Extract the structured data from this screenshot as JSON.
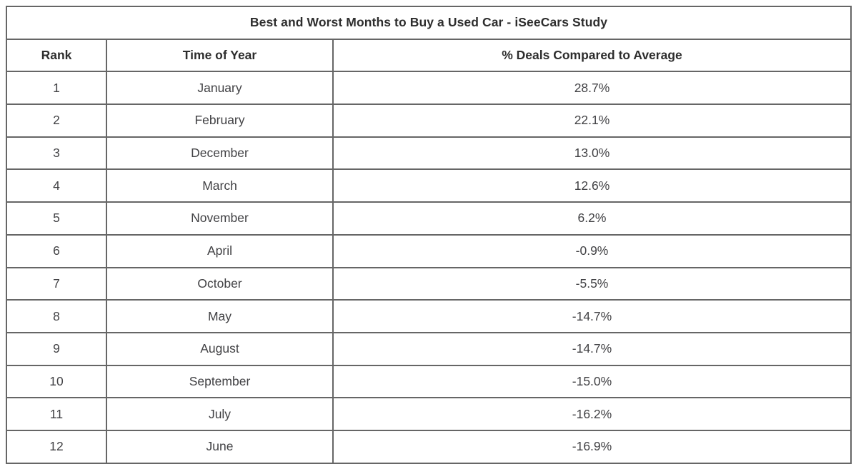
{
  "colors": {
    "border": "#666666",
    "header_text": "#2d2d2d",
    "cell_text": "#414144",
    "background": "#ffffff"
  },
  "table": {
    "title": "Best and Worst Months to Buy a Used Car - iSeeCars Study",
    "columns": [
      "Rank",
      "Time of Year",
      "% Deals Compared to Average"
    ],
    "rows": [
      [
        "1",
        "January",
        "28.7%"
      ],
      [
        "2",
        "February",
        "22.1%"
      ],
      [
        "3",
        "December",
        "13.0%"
      ],
      [
        "4",
        "March",
        "12.6%"
      ],
      [
        "5",
        "November",
        "6.2%"
      ],
      [
        "6",
        "April",
        "-0.9%"
      ],
      [
        "7",
        "October",
        "-5.5%"
      ],
      [
        "8",
        "May",
        "-14.7%"
      ],
      [
        "9",
        "August",
        "-14.7%"
      ],
      [
        "10",
        "September",
        "-15.0%"
      ],
      [
        "11",
        "July",
        "-16.2%"
      ],
      [
        "12",
        "June",
        "-16.9%"
      ]
    ]
  },
  "chart_data": {
    "type": "table",
    "title": "Best and Worst Months to Buy a Used Car - iSeeCars Study",
    "columns": [
      "Rank",
      "Time of Year",
      "% Deals Compared to Average"
    ],
    "rows": [
      [
        1,
        "January",
        28.7
      ],
      [
        2,
        "February",
        22.1
      ],
      [
        3,
        "December",
        13.0
      ],
      [
        4,
        "March",
        12.6
      ],
      [
        5,
        "November",
        6.2
      ],
      [
        6,
        "April",
        -0.9
      ],
      [
        7,
        "October",
        -5.5
      ],
      [
        8,
        "May",
        -14.7
      ],
      [
        9,
        "August",
        -14.7
      ],
      [
        10,
        "September",
        -15.0
      ],
      [
        11,
        "July",
        -16.2
      ],
      [
        12,
        "June",
        -16.9
      ]
    ],
    "value_units": "percent deals compared to average"
  }
}
